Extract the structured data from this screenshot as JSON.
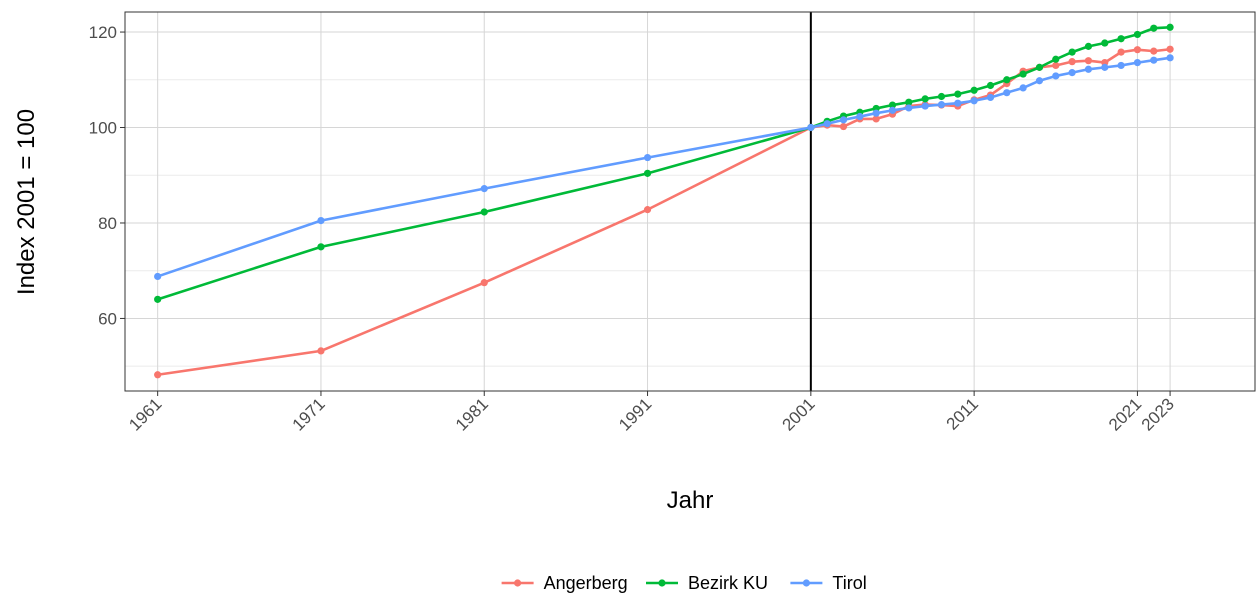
{
  "chart_data": {
    "type": "line",
    "xlabel": "Jahr",
    "ylabel": "Index 2001 = 100",
    "xlim": [
      1959,
      2028.2
    ],
    "ylim": [
      44.8,
      124.2
    ],
    "x_ticks": [
      1961,
      1971,
      1981,
      1991,
      2001,
      2011,
      2021,
      2023
    ],
    "y_ticks": [
      60,
      80,
      100,
      120
    ],
    "grid": true,
    "legend_position": "bottom",
    "reference_line": {
      "x": 2001,
      "color": "#000000"
    },
    "series": [
      {
        "name": "Angerberg",
        "color": "#F8766D",
        "x": [
          1961,
          1971,
          1981,
          1991,
          2001,
          2002,
          2003,
          2004,
          2005,
          2006,
          2007,
          2008,
          2009,
          2010,
          2011,
          2012,
          2013,
          2014,
          2015,
          2016,
          2017,
          2018,
          2019,
          2020,
          2021,
          2022,
          2023
        ],
        "y": [
          48.2,
          53.2,
          67.5,
          82.8,
          100,
          100.5,
          100.2,
          101.8,
          101.8,
          102.8,
          104.5,
          104.8,
          104.7,
          104.5,
          105.8,
          106.8,
          109.2,
          111.8,
          112.6,
          113.0,
          113.8,
          114.0,
          113.6,
          115.8,
          116.3,
          116.0,
          116.4
        ]
      },
      {
        "name": "Bezirk KU",
        "color": "#00BA38",
        "x": [
          1961,
          1971,
          1981,
          1991,
          2001,
          2002,
          2003,
          2004,
          2005,
          2006,
          2007,
          2008,
          2009,
          2010,
          2011,
          2012,
          2013,
          2014,
          2015,
          2016,
          2017,
          2018,
          2019,
          2020,
          2021,
          2022,
          2023
        ],
        "y": [
          64.0,
          75.0,
          82.3,
          90.4,
          100,
          101.3,
          102.4,
          103.2,
          104.0,
          104.7,
          105.3,
          106.0,
          106.5,
          107.0,
          107.8,
          108.8,
          110.0,
          111.2,
          112.6,
          114.3,
          115.8,
          117.0,
          117.7,
          118.6,
          119.5,
          120.8,
          121.0
        ]
      },
      {
        "name": "Tirol",
        "color": "#619CFF",
        "x": [
          1961,
          1971,
          1981,
          1991,
          2001,
          2002,
          2003,
          2004,
          2005,
          2006,
          2007,
          2008,
          2009,
          2010,
          2011,
          2012,
          2013,
          2014,
          2015,
          2016,
          2017,
          2018,
          2019,
          2020,
          2021,
          2022,
          2023
        ],
        "y": [
          68.8,
          80.5,
          87.2,
          93.7,
          100,
          100.8,
          101.6,
          102.3,
          103.0,
          103.6,
          104.1,
          104.5,
          104.8,
          105.1,
          105.6,
          106.3,
          107.3,
          108.3,
          109.8,
          110.8,
          111.5,
          112.2,
          112.6,
          113.0,
          113.6,
          114.1,
          114.6
        ]
      }
    ]
  }
}
